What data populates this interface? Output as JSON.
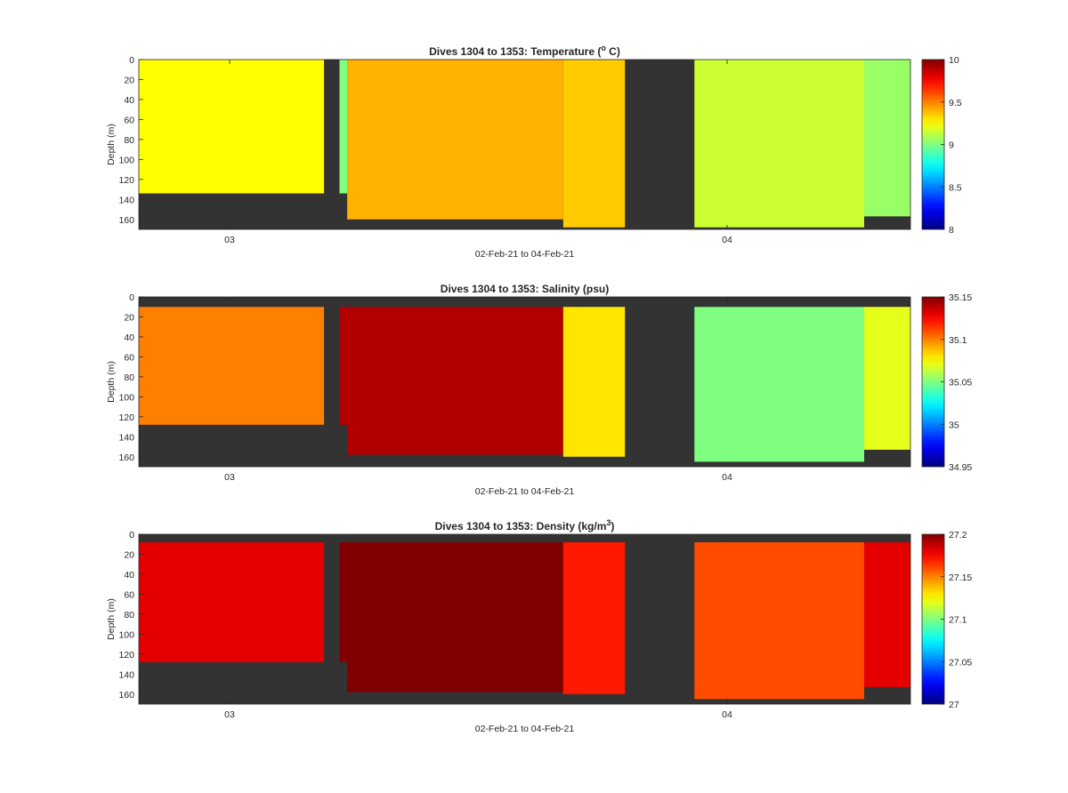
{
  "chart_data": [
    {
      "type": "heatmap",
      "title": "Dives 1304 to 1353: Temperature (",
      "title_sup": "o",
      "title_end": " C)",
      "ylabel": "Depth (m)",
      "xlabel": "02-Feb-21 to 04-Feb-21",
      "x_ticks": [
        "03",
        "04"
      ],
      "y_ticks": [
        0,
        20,
        40,
        60,
        80,
        100,
        120,
        140,
        160
      ],
      "ylim": [
        0,
        170
      ],
      "y_reversed": true,
      "colorbar": {
        "ticks": [
          "10",
          "9.5",
          "9",
          "8.5",
          "8"
        ],
        "clim": [
          8,
          10
        ],
        "colormap": "jet"
      },
      "columns": [
        {
          "from": 0,
          "to": 24,
          "top": 0,
          "bottom": 134,
          "value": 9.25
        },
        {
          "from": 26,
          "to": 27,
          "top": 0,
          "bottom": 134,
          "value": 9.0
        },
        {
          "from": 27,
          "to": 55,
          "top": 0,
          "bottom": 160,
          "value": 9.4
        },
        {
          "from": 55,
          "to": 63,
          "top": 0,
          "bottom": 168,
          "value": 9.35
        },
        {
          "from": 72,
          "to": 94,
          "top": 0,
          "bottom": 168,
          "value": 9.15
        },
        {
          "from": 94,
          "to": 100,
          "top": 0,
          "bottom": 157,
          "value": 9.05
        }
      ]
    },
    {
      "type": "heatmap",
      "title": "Dives 1304 to 1353: Salinity (psu)",
      "ylabel": "Depth (m)",
      "xlabel": "02-Feb-21 to 04-Feb-21",
      "x_ticks": [
        "03",
        "04"
      ],
      "y_ticks": [
        0,
        20,
        40,
        60,
        80,
        100,
        120,
        140,
        160
      ],
      "ylim": [
        0,
        170
      ],
      "y_reversed": true,
      "colorbar": {
        "ticks": [
          "35.15",
          "35.1",
          "35.05",
          "35",
          "34.95"
        ],
        "clim": [
          34.95,
          35.15
        ],
        "colormap": "jet"
      },
      "columns": [
        {
          "from": 0,
          "to": 24,
          "top": 10,
          "bottom": 128,
          "value": 35.1
        },
        {
          "from": 26,
          "to": 27,
          "top": 10,
          "bottom": 128,
          "value": 35.14
        },
        {
          "from": 27,
          "to": 55,
          "top": 10,
          "bottom": 158,
          "value": 35.14
        },
        {
          "from": 55,
          "to": 63,
          "top": 10,
          "bottom": 160,
          "value": 35.08
        },
        {
          "from": 72,
          "to": 94,
          "top": 10,
          "bottom": 165,
          "value": 35.05
        },
        {
          "from": 94,
          "to": 100,
          "top": 10,
          "bottom": 153,
          "value": 35.07
        }
      ]
    },
    {
      "type": "heatmap",
      "title": "Dives 1304 to 1353: Density (kg/m",
      "title_sup": "3",
      "title_end": ")",
      "ylabel": "Depth (m)",
      "xlabel": "02-Feb-21 to 04-Feb-21",
      "x_ticks": [
        "03",
        "04"
      ],
      "y_ticks": [
        0,
        20,
        40,
        60,
        80,
        100,
        120,
        140,
        160
      ],
      "ylim": [
        0,
        170
      ],
      "y_reversed": true,
      "colorbar": {
        "ticks": [
          "27.2",
          "27.15",
          "27.1",
          "27.05",
          "27"
        ],
        "clim": [
          27.0,
          27.2
        ],
        "colormap": "jet"
      },
      "columns": [
        {
          "from": 0,
          "to": 24,
          "top": 8,
          "bottom": 128,
          "value": 27.18
        },
        {
          "from": 26,
          "to": 27,
          "top": 8,
          "bottom": 128,
          "value": 27.2
        },
        {
          "from": 27,
          "to": 55,
          "top": 8,
          "bottom": 158,
          "value": 27.2
        },
        {
          "from": 55,
          "to": 63,
          "top": 8,
          "bottom": 160,
          "value": 27.17
        },
        {
          "from": 72,
          "to": 94,
          "top": 8,
          "bottom": 165,
          "value": 27.16
        },
        {
          "from": 94,
          "to": 100,
          "top": 8,
          "bottom": 153,
          "value": 27.18
        }
      ]
    }
  ]
}
